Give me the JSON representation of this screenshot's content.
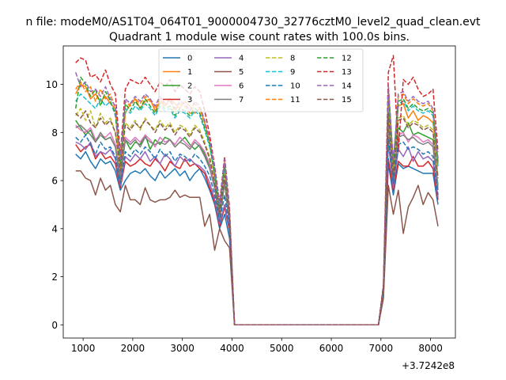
{
  "chart_data": {
    "type": "line",
    "suptitle": "n file: modeM0/AS1T04_064T01_9000004730_32776cztM0_level2_quad_clean.evt",
    "title": "Quadrant 1 module wise count rates with 100.0s bins.",
    "xlabel": "",
    "ylabel": "",
    "x_offset_label": "+3.7242e8",
    "xlim": [
      600,
      8500
    ],
    "ylim": [
      -0.55,
      11.6
    ],
    "xticks": [
      1000,
      2000,
      3000,
      4000,
      5000,
      6000,
      7000,
      8000
    ],
    "yticks": [
      0,
      2,
      4,
      6,
      8,
      10
    ],
    "legend_position": "top-center",
    "legend_columns": 4,
    "x": [
      850,
      950,
      1050,
      1150,
      1250,
      1350,
      1450,
      1550,
      1650,
      1750,
      1850,
      1950,
      2050,
      2150,
      2250,
      2350,
      2450,
      2550,
      2650,
      2750,
      2850,
      2950,
      3050,
      3150,
      3250,
      3350,
      3450,
      3550,
      3650,
      3750,
      3850,
      3950,
      4050,
      6950,
      7050,
      7150,
      7250,
      7350,
      7450,
      7550,
      7650,
      7750,
      7850,
      7950,
      8050,
      8150
    ],
    "series": [
      {
        "name": "0",
        "color": "#1f77b4",
        "dash": "solid",
        "values": [
          7.1,
          6.9,
          7.2,
          6.8,
          6.5,
          6.9,
          6.7,
          6.8,
          6.4,
          5.6,
          6.0,
          6.3,
          6.4,
          6.3,
          6.5,
          6.2,
          6.0,
          6.4,
          6.1,
          6.3,
          6.5,
          6.2,
          6.4,
          6.0,
          6.3,
          6.5,
          6.1,
          5.6,
          5.0,
          4.0,
          4.6,
          3.6,
          0.0,
          0.0,
          1.3,
          6.7,
          5.4,
          6.7,
          6.5,
          6.6,
          6.5,
          6.4,
          6.3,
          6.3,
          6.3,
          5.0
        ]
      },
      {
        "name": "1",
        "color": "#ff7f0e",
        "dash": "solid",
        "values": [
          9.6,
          10.0,
          9.9,
          9.4,
          9.6,
          9.3,
          9.5,
          9.2,
          9.0,
          6.2,
          8.8,
          9.2,
          9.4,
          9.0,
          9.3,
          9.4,
          8.9,
          9.3,
          9.1,
          9.4,
          9.2,
          9.0,
          9.3,
          9.1,
          8.8,
          9.0,
          8.4,
          7.6,
          6.1,
          4.7,
          6.5,
          4.5,
          0.0,
          0.0,
          1.6,
          9.5,
          6.4,
          9.1,
          9.2,
          8.6,
          8.9,
          8.5,
          8.7,
          8.6,
          8.4,
          6.7
        ]
      },
      {
        "name": "2",
        "color": "#2ca02c",
        "dash": "solid",
        "values": [
          8.5,
          8.2,
          7.9,
          8.1,
          7.6,
          7.9,
          7.7,
          7.8,
          7.4,
          6.0,
          7.7,
          7.3,
          7.6,
          7.5,
          7.9,
          7.3,
          7.7,
          7.5,
          7.8,
          7.7,
          7.4,
          7.6,
          7.8,
          7.5,
          7.3,
          7.5,
          7.1,
          6.6,
          5.7,
          4.4,
          5.9,
          4.2,
          0.0,
          0.0,
          1.5,
          8.5,
          6.0,
          8.2,
          8.0,
          8.4,
          7.9,
          8.0,
          7.9,
          7.8,
          7.7,
          5.8
        ]
      },
      {
        "name": "3",
        "color": "#d62728",
        "dash": "solid",
        "values": [
          7.5,
          7.2,
          7.4,
          7.5,
          6.9,
          7.2,
          6.9,
          7.0,
          6.7,
          5.7,
          6.8,
          6.6,
          6.7,
          6.9,
          6.7,
          6.6,
          6.9,
          6.7,
          6.4,
          6.8,
          6.6,
          6.5,
          6.9,
          6.6,
          6.7,
          6.5,
          6.3,
          5.7,
          5.1,
          4.1,
          4.9,
          3.9,
          0.0,
          0.0,
          1.3,
          6.9,
          5.6,
          6.8,
          6.6,
          6.6,
          7.0,
          6.6,
          6.6,
          6.8,
          6.5,
          5.2
        ]
      },
      {
        "name": "4",
        "color": "#9467bd",
        "dash": "solid",
        "values": [
          7.6,
          7.5,
          7.3,
          7.6,
          7.0,
          7.2,
          7.1,
          7.3,
          6.9,
          5.8,
          7.0,
          6.8,
          7.1,
          6.9,
          7.2,
          6.8,
          7.0,
          6.7,
          7.1,
          6.9,
          6.6,
          7.0,
          6.8,
          6.9,
          6.7,
          6.6,
          6.4,
          5.9,
          5.2,
          4.2,
          5.0,
          4.0,
          0.0,
          0.0,
          1.4,
          7.6,
          5.7,
          7.3,
          7.0,
          7.4,
          6.8,
          7.2,
          6.9,
          7.0,
          6.8,
          5.3
        ]
      },
      {
        "name": "5",
        "color": "#8c564b",
        "dash": "solid",
        "values": [
          6.4,
          6.4,
          6.1,
          6.0,
          5.4,
          6.1,
          5.6,
          5.8,
          5.0,
          4.7,
          5.8,
          5.2,
          5.2,
          5.0,
          5.7,
          5.2,
          5.1,
          5.2,
          5.2,
          5.3,
          5.6,
          5.3,
          5.4,
          5.3,
          5.3,
          5.3,
          4.1,
          4.6,
          3.1,
          4.0,
          3.5,
          3.2,
          0.0,
          0.0,
          1.1,
          5.8,
          4.6,
          5.6,
          3.8,
          4.9,
          5.3,
          5.8,
          5.0,
          5.5,
          5.2,
          4.1
        ]
      },
      {
        "name": "6",
        "color": "#e377c2",
        "dash": "solid",
        "values": [
          8.3,
          8.1,
          8.0,
          8.2,
          7.7,
          7.9,
          7.8,
          8.0,
          7.5,
          6.2,
          7.8,
          7.6,
          7.8,
          7.6,
          7.9,
          7.7,
          7.4,
          7.8,
          7.6,
          7.7,
          7.5,
          7.8,
          7.6,
          7.4,
          7.7,
          7.5,
          7.2,
          6.7,
          5.8,
          4.5,
          6.0,
          4.3,
          0.0,
          0.0,
          1.4,
          8.3,
          6.1,
          7.9,
          8.0,
          7.6,
          7.9,
          7.8,
          7.6,
          7.7,
          7.5,
          5.7
        ]
      },
      {
        "name": "7",
        "color": "#7f7f7f",
        "dash": "solid",
        "values": [
          8.2,
          8.3,
          8.1,
          7.9,
          7.6,
          8.0,
          7.7,
          7.8,
          7.4,
          6.1,
          7.7,
          7.5,
          7.7,
          7.4,
          7.8,
          7.6,
          7.5,
          7.6,
          7.5,
          7.7,
          7.4,
          7.6,
          7.5,
          7.3,
          7.6,
          7.4,
          7.0,
          6.5,
          5.7,
          4.4,
          5.9,
          4.2,
          0.0,
          0.0,
          1.4,
          8.4,
          6.0,
          7.8,
          7.9,
          7.7,
          7.8,
          7.6,
          7.5,
          7.6,
          7.4,
          5.6
        ]
      },
      {
        "name": "8",
        "color": "#bcbd22",
        "dash": "dashed",
        "values": [
          8.7,
          9.0,
          8.5,
          8.9,
          8.2,
          8.8,
          8.4,
          8.6,
          8.0,
          6.5,
          8.4,
          8.2,
          8.5,
          8.1,
          8.6,
          8.3,
          8.1,
          8.5,
          8.2,
          8.4,
          8.0,
          8.3,
          8.2,
          7.9,
          8.3,
          8.1,
          7.6,
          7.0,
          6.0,
          4.6,
          6.3,
          4.4,
          0.0,
          0.0,
          1.5,
          9.0,
          6.3,
          8.6,
          8.7,
          8.3,
          8.5,
          8.4,
          8.2,
          8.3,
          8.1,
          6.2
        ]
      },
      {
        "name": "9",
        "color": "#17becf",
        "dash": "dashed",
        "values": [
          9.3,
          9.6,
          9.4,
          9.2,
          9.0,
          9.4,
          9.1,
          9.3,
          8.7,
          6.8,
          9.0,
          8.8,
          9.1,
          8.9,
          9.2,
          9.0,
          8.7,
          9.1,
          8.9,
          9.0,
          8.6,
          8.9,
          8.8,
          8.6,
          8.9,
          8.7,
          8.1,
          7.4,
          6.3,
          4.8,
          6.6,
          4.6,
          0.0,
          0.0,
          1.6,
          9.5,
          6.6,
          9.2,
          9.3,
          8.9,
          9.1,
          8.9,
          8.8,
          8.9,
          8.7,
          6.6
        ]
      },
      {
        "name": "10",
        "color": "#1f77b4",
        "dash": "dashed",
        "values": [
          7.8,
          7.6,
          7.9,
          7.5,
          7.1,
          7.6,
          7.3,
          7.4,
          7.0,
          5.9,
          7.2,
          7.0,
          7.3,
          7.1,
          7.4,
          7.2,
          6.9,
          7.3,
          7.0,
          7.2,
          6.8,
          7.1,
          7.0,
          6.8,
          7.1,
          6.9,
          6.6,
          6.2,
          5.4,
          4.3,
          5.4,
          4.0,
          0.0,
          0.0,
          1.4,
          7.8,
          5.9,
          7.5,
          7.6,
          7.3,
          7.4,
          7.3,
          7.1,
          7.2,
          7.0,
          5.4
        ]
      },
      {
        "name": "11",
        "color": "#ff7f0e",
        "dash": "dashed",
        "values": [
          9.8,
          10.1,
          9.7,
          9.9,
          9.3,
          9.8,
          9.4,
          9.6,
          9.0,
          6.9,
          9.3,
          9.1,
          9.4,
          9.2,
          9.5,
          9.3,
          9.0,
          9.4,
          9.1,
          9.3,
          8.9,
          9.2,
          9.1,
          8.8,
          9.2,
          9.0,
          8.4,
          7.6,
          6.4,
          4.9,
          6.8,
          4.7,
          0.0,
          0.0,
          1.6,
          9.8,
          6.7,
          9.5,
          9.6,
          9.2,
          9.4,
          9.2,
          9.1,
          9.2,
          8.9,
          6.8
        ]
      },
      {
        "name": "12",
        "color": "#2ca02c",
        "dash": "dashed",
        "values": [
          9.0,
          10.3,
          10.0,
          9.5,
          9.8,
          9.1,
          9.7,
          9.3,
          8.8,
          6.7,
          9.2,
          8.9,
          9.3,
          9.0,
          9.4,
          9.1,
          8.8,
          9.2,
          9.0,
          9.1,
          8.7,
          9.0,
          8.9,
          8.7,
          9.0,
          8.8,
          8.2,
          7.5,
          6.3,
          4.8,
          6.7,
          4.6,
          0.0,
          0.0,
          1.6,
          9.7,
          6.7,
          9.3,
          9.4,
          9.0,
          9.2,
          9.0,
          8.9,
          9.0,
          8.8,
          6.7
        ]
      },
      {
        "name": "13",
        "color": "#d62728",
        "dash": "dashed",
        "values": [
          10.9,
          11.1,
          11.0,
          10.3,
          10.4,
          10.1,
          10.6,
          10.0,
          9.6,
          7.1,
          9.8,
          10.2,
          10.1,
          10.0,
          10.3,
          10.0,
          9.7,
          10.1,
          9.9,
          10.2,
          9.7,
          10.0,
          9.8,
          9.6,
          9.9,
          9.7,
          8.9,
          7.9,
          6.6,
          5.1,
          7.0,
          4.9,
          0.0,
          0.0,
          1.7,
          10.5,
          11.2,
          7.2,
          10.2,
          10.0,
          10.3,
          9.8,
          9.5,
          9.6,
          9.8,
          7.2
        ]
      },
      {
        "name": "14",
        "color": "#9467bd",
        "dash": "dashed",
        "values": [
          10.5,
          9.9,
          10.1,
          9.7,
          9.8,
          9.5,
          9.9,
          9.4,
          9.1,
          6.9,
          9.4,
          9.2,
          9.5,
          9.3,
          9.6,
          9.4,
          9.1,
          9.5,
          9.2,
          9.4,
          9.0,
          9.3,
          9.2,
          8.9,
          9.3,
          9.1,
          8.5,
          7.7,
          6.5,
          5.0,
          6.9,
          4.7,
          0.0,
          0.0,
          1.6,
          10.0,
          6.8,
          9.6,
          9.7,
          9.3,
          9.5,
          9.3,
          9.2,
          9.3,
          9.0,
          6.9
        ]
      },
      {
        "name": "15",
        "color": "#8c564b",
        "dash": "dashed",
        "values": [
          8.8,
          8.6,
          8.9,
          8.4,
          8.2,
          8.6,
          8.3,
          8.5,
          8.0,
          6.4,
          8.3,
          8.1,
          8.4,
          8.2,
          8.5,
          8.3,
          8.0,
          8.4,
          8.1,
          8.3,
          7.9,
          8.2,
          8.1,
          7.8,
          8.2,
          8.0,
          7.5,
          6.9,
          5.9,
          4.6,
          6.2,
          4.4,
          0.0,
          0.0,
          1.5,
          8.8,
          6.2,
          8.5,
          8.6,
          8.2,
          8.4,
          8.3,
          8.1,
          8.2,
          8.0,
          6.1
        ]
      }
    ]
  }
}
